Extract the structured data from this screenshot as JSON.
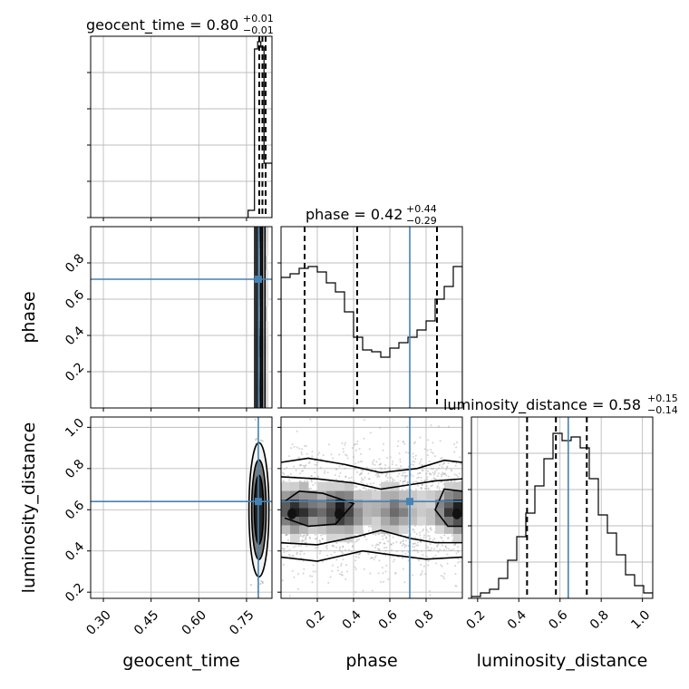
{
  "chart_data": {
    "type": "corner",
    "parameters": [
      "geocent_time",
      "phase",
      "luminosity_distance"
    ],
    "truths": {
      "geocent_time": 0.787,
      "phase": 0.71,
      "luminosity_distance": 0.64
    },
    "titles": [
      {
        "param": "geocent_time",
        "text": "geocent_time = 0.80",
        "plus": "+0.01",
        "minus": "−0.01"
      },
      {
        "param": "phase",
        "text": "phase = 0.42",
        "plus": "+0.44",
        "minus": "−0.29"
      },
      {
        "param": "luminosity_distance",
        "text": "luminosity_distance = 0.58",
        "plus": "+0.15",
        "minus": "−0.14"
      }
    ],
    "quantiles": {
      "geocent_time": [
        0.79,
        0.8,
        0.81
      ],
      "phase": [
        0.13,
        0.42,
        0.86
      ],
      "luminosity_distance": [
        0.44,
        0.58,
        0.73
      ]
    },
    "ranges": {
      "geocent_time": [
        0.26,
        0.83
      ],
      "phase": [
        0.0,
        1.0
      ],
      "luminosity_distance": [
        0.17,
        1.05
      ]
    },
    "ticks": {
      "geocent_time": [
        "0.30",
        "0.45",
        "0.60",
        "0.75"
      ],
      "phase": [
        "0.2",
        "0.4",
        "0.6",
        "0.8"
      ],
      "luminosity_distance": [
        "0.2",
        "0.4",
        "0.6",
        "0.8",
        "1.0"
      ]
    },
    "hist_geocent_time": {
      "edges": [
        0.755,
        0.775,
        0.785,
        0.795,
        0.805,
        0.83
      ],
      "values": [
        0.04,
        0.93,
        0.97,
        0.94,
        0.3
      ]
    },
    "hist_phase": {
      "x0": 0.0,
      "dx": 0.05,
      "values": [
        0.72,
        0.74,
        0.77,
        0.78,
        0.75,
        0.69,
        0.64,
        0.53,
        0.39,
        0.32,
        0.31,
        0.28,
        0.33,
        0.36,
        0.39,
        0.43,
        0.48,
        0.6,
        0.67,
        0.78
      ]
    },
    "hist_luminosity_distance": {
      "x0": 0.17,
      "dx": 0.044,
      "values": [
        0.01,
        0.03,
        0.05,
        0.11,
        0.21,
        0.34,
        0.47,
        0.62,
        0.77,
        0.91,
        0.87,
        0.89,
        0.83,
        0.66,
        0.46,
        0.36,
        0.24,
        0.13,
        0.07,
        0.03,
        0.01
      ]
    },
    "xlabels": [
      "geocent_time",
      "phase",
      "luminosity_distance"
    ],
    "ylabels": [
      "phase",
      "luminosity_distance"
    ],
    "grid": true
  }
}
